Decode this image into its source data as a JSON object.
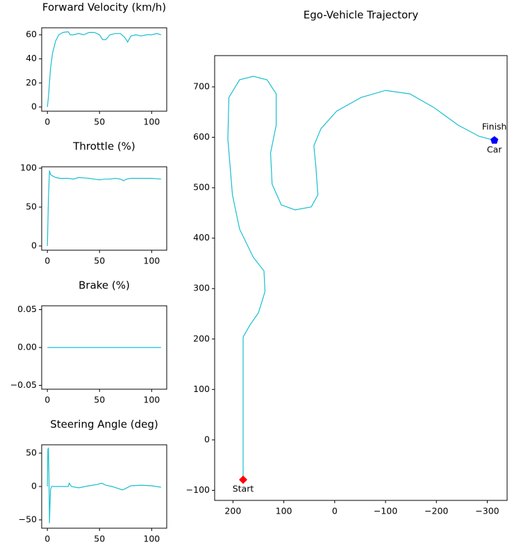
{
  "chart_data": [
    {
      "type": "line",
      "title": "Forward Velocity (km/h)",
      "color": "#17becf",
      "x": [
        0,
        1,
        2,
        3,
        5,
        8,
        11,
        15,
        20,
        22,
        25,
        30,
        35,
        40,
        45,
        50,
        53,
        56,
        60,
        65,
        70,
        74,
        77,
        80,
        85,
        90,
        95,
        100,
        105,
        109
      ],
      "values": [
        0,
        8,
        20,
        32,
        45,
        55,
        60,
        62,
        62.5,
        60,
        60,
        61,
        60,
        62,
        62,
        60,
        56,
        56,
        60,
        61,
        61,
        58,
        54,
        59,
        60,
        59,
        60,
        60,
        61,
        60
      ],
      "xlim": [
        -5.45,
        114.45
      ],
      "xticks": [
        0,
        50,
        100
      ],
      "ylim": [
        -3.5,
        65.8
      ],
      "yticks": [
        0,
        20,
        40,
        60
      ]
    },
    {
      "type": "line",
      "title": "Throttle (%)",
      "color": "#17becf",
      "x": [
        0,
        1,
        2,
        3,
        5,
        8,
        12,
        20,
        25,
        30,
        40,
        50,
        55,
        60,
        65,
        70,
        73,
        76,
        80,
        90,
        100,
        109
      ],
      "values": [
        0,
        60,
        97,
        92,
        90,
        88,
        87,
        87,
        86,
        88,
        87,
        85,
        86,
        86,
        87,
        86,
        84,
        86,
        87,
        87,
        87,
        86
      ],
      "xlim": [
        -5.45,
        114.45
      ],
      "xticks": [
        0,
        50,
        100
      ],
      "ylim": [
        -5.4,
        101.8
      ],
      "yticks": [
        0,
        50,
        100
      ]
    },
    {
      "type": "line",
      "title": "Brake (%)",
      "color": "#17becf",
      "x": [
        0,
        109
      ],
      "values": [
        0,
        0
      ],
      "xlim": [
        -5.45,
        114.45
      ],
      "xticks": [
        0,
        50,
        100
      ],
      "ylim": [
        -0.055,
        0.055
      ],
      "yticks": [
        {
          "value": -0.05,
          "label": "−0.05"
        },
        {
          "value": 0,
          "label": "0.00"
        },
        0.05
      ]
    },
    {
      "type": "line",
      "title": "Steering Angle (deg)",
      "color": "#17becf",
      "x": [
        0,
        0.5,
        1,
        1.5,
        2,
        2.5,
        3,
        4,
        10,
        20,
        21,
        23,
        30,
        40,
        48,
        52,
        56,
        62,
        66,
        72,
        75,
        80,
        90,
        100,
        109
      ],
      "values": [
        0,
        55,
        58,
        20,
        -55,
        -30,
        -5,
        0,
        0,
        0,
        5,
        0,
        -2,
        1,
        3,
        5,
        2,
        0,
        -2,
        -5,
        -3,
        1,
        2,
        1,
        -1
      ],
      "xlim": [
        -5.45,
        114.45
      ],
      "xticks": [
        0,
        50,
        100
      ],
      "ylim": [
        -62.5,
        62.5
      ],
      "yticks": [
        {
          "value": -50,
          "label": "−50"
        },
        0,
        50
      ]
    },
    {
      "type": "trajectory",
      "title": "Ego-Vehicle Trajectory",
      "color": "#17becf",
      "x": [
        180,
        180,
        180,
        167,
        150,
        137,
        139,
        160,
        187,
        201,
        210,
        208,
        187,
        160,
        133,
        115,
        115,
        126,
        123,
        105,
        78,
        46,
        33,
        37,
        41,
        27,
        -4,
        -52,
        -100,
        -148,
        -195,
        -243,
        -284,
        -314
      ],
      "values": [
        -79,
        45,
        204,
        227,
        252,
        294,
        335,
        362,
        418,
        486,
        597,
        679,
        714,
        721,
        714,
        686,
        624,
        569,
        507,
        466,
        456,
        462,
        486,
        542,
        583,
        617,
        652,
        679,
        693,
        686,
        659,
        624,
        602,
        594
      ],
      "xlim": [
        236,
        -339
      ],
      "ylim": [
        -120,
        762
      ],
      "xticks": [
        200,
        100,
        0,
        {
          "value": -100,
          "label": "−100"
        },
        {
          "value": -200,
          "label": "−200"
        },
        {
          "value": -300,
          "label": "−300"
        }
      ],
      "yticks": [
        {
          "value": -100,
          "label": "−100"
        },
        0,
        100,
        200,
        300,
        400,
        500,
        600,
        700
      ],
      "annotations": [
        {
          "text": "Start",
          "x": 180,
          "y": -79,
          "marker": "diamond",
          "color": "#ff0000",
          "position": "below"
        },
        {
          "text": "Finish",
          "x": -314,
          "y": 594,
          "marker": "pentagon",
          "color": "#0000ff",
          "position": "above"
        },
        {
          "text": "Car",
          "x": -314,
          "y": 594,
          "position": "below"
        }
      ]
    }
  ]
}
